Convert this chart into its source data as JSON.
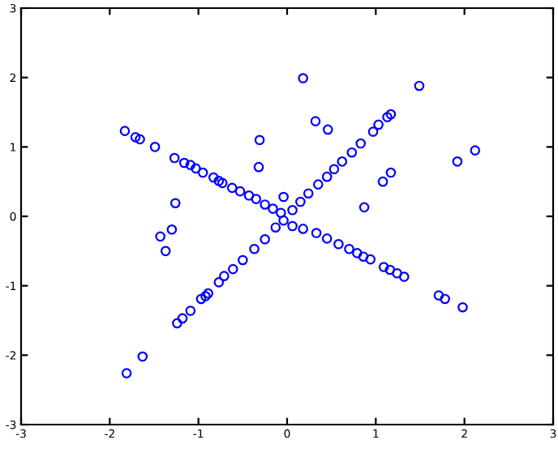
{
  "chart_data": {
    "type": "scatter",
    "marker": "circle",
    "grid": false,
    "xlim": [
      -3,
      3
    ],
    "ylim": [
      -3,
      3
    ],
    "xticks": [
      -3,
      -2,
      -1,
      0,
      1,
      2,
      3
    ],
    "yticks": [
      -3,
      -2,
      -1,
      0,
      1,
      2,
      3
    ],
    "series": [
      {
        "color": "#0000ff",
        "x": [
          -1.83,
          -1.71,
          -1.66,
          -1.49,
          -1.27,
          -1.16,
          -1.09,
          -1.03,
          -0.95,
          -0.83,
          -0.77,
          -0.73,
          -0.62,
          -0.53,
          -0.43,
          -0.35,
          -0.25,
          -0.16,
          -0.07,
          -0.31,
          -0.32,
          -0.04,
          -1.26,
          0.18,
          0.32,
          0.46,
          1.49,
          1.17,
          1.13,
          1.03,
          0.97,
          0.83,
          0.73,
          0.62,
          0.53,
          0.45,
          0.35,
          0.24,
          0.15,
          0.06,
          2.12,
          1.92,
          1.17,
          1.08,
          0.87,
          -1.43,
          -1.3,
          -1.37,
          -1.81,
          -1.63,
          -1.24,
          -1.18,
          -1.09,
          -0.97,
          -0.92,
          -0.89,
          -0.77,
          -0.71,
          -0.61,
          -0.5,
          -0.37,
          -0.25,
          -0.13,
          -0.04,
          0.06,
          0.18,
          0.33,
          0.45,
          0.58,
          0.7,
          0.79,
          0.86,
          0.94,
          1.09,
          1.16,
          1.24,
          1.32,
          1.71,
          1.78,
          1.98
        ],
        "values": [
          1.23,
          1.14,
          1.11,
          1.0,
          0.84,
          0.77,
          0.74,
          0.69,
          0.63,
          0.56,
          0.51,
          0.48,
          0.41,
          0.36,
          0.3,
          0.25,
          0.17,
          0.11,
          0.05,
          1.1,
          0.71,
          0.28,
          0.19,
          1.99,
          1.37,
          1.25,
          1.88,
          1.47,
          1.43,
          1.32,
          1.22,
          1.05,
          0.92,
          0.79,
          0.68,
          0.57,
          0.46,
          0.33,
          0.21,
          0.09,
          0.95,
          0.79,
          0.63,
          0.5,
          0.13,
          -0.29,
          -0.19,
          -0.5,
          -2.26,
          -2.02,
          -1.54,
          -1.47,
          -1.36,
          -1.19,
          -1.15,
          -1.11,
          -0.95,
          -0.86,
          -0.76,
          -0.63,
          -0.47,
          -0.33,
          -0.16,
          -0.06,
          -0.14,
          -0.18,
          -0.24,
          -0.32,
          -0.4,
          -0.47,
          -0.53,
          -0.58,
          -0.62,
          -0.73,
          -0.77,
          -0.82,
          -0.87,
          -1.14,
          -1.19,
          -1.31
        ]
      }
    ]
  }
}
